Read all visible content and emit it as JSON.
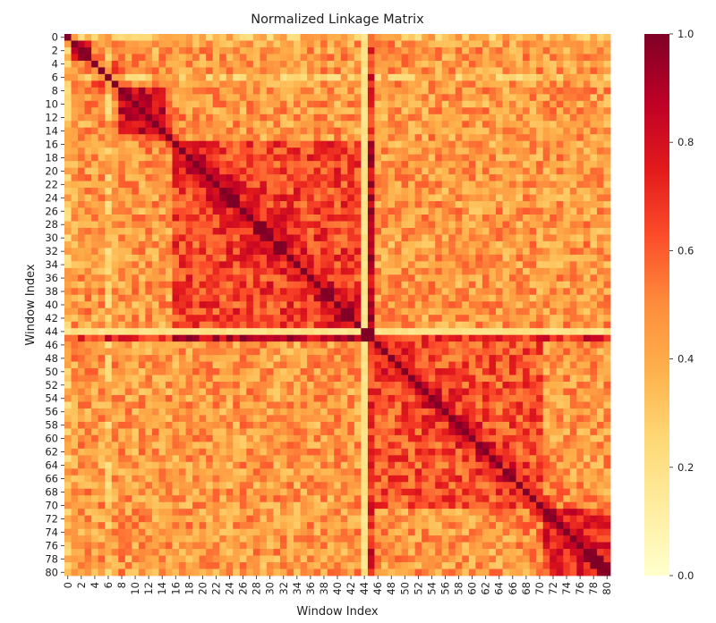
{
  "chart_data": {
    "type": "heatmap",
    "title": "Normalized Linkage Matrix",
    "xlabel": "Window Index",
    "ylabel": "Window Index",
    "n": 81,
    "tick_step": 2,
    "value_range": [
      0.0,
      1.0
    ],
    "colormap": "YlOrRd",
    "colorbar_ticks": [
      "0.0",
      "0.2",
      "0.4",
      "0.6",
      "0.8",
      "1.0"
    ],
    "structure": {
      "diagonal_value": 1.0,
      "low_linkage_rows_cols": [
        44
      ],
      "low_row_value": 0.15,
      "low_row_cross_value": 1.0,
      "strong_row_col": 45,
      "blocks": [
        {
          "from": 0,
          "to": 3,
          "level": 0.7
        },
        {
          "from": 8,
          "to": 14,
          "level": 0.78
        },
        {
          "from": 16,
          "to": 43,
          "level": 0.66
        },
        {
          "from": 45,
          "to": 70,
          "level": 0.62
        },
        {
          "from": 71,
          "to": 80,
          "level": 0.68
        }
      ],
      "cross_block_level": 0.45,
      "left_strip_cols": [
        0,
        6
      ],
      "left_strip_level": 0.25
    },
    "colors": {
      "c0": "#ffffcc",
      "c1": "#ffeda0",
      "c2": "#fed976",
      "c3": "#feb24c",
      "c4": "#fd8d3c",
      "c5": "#fc4e2a",
      "c6": "#e31a1c",
      "c7": "#bd0026",
      "c8": "#800026"
    }
  }
}
